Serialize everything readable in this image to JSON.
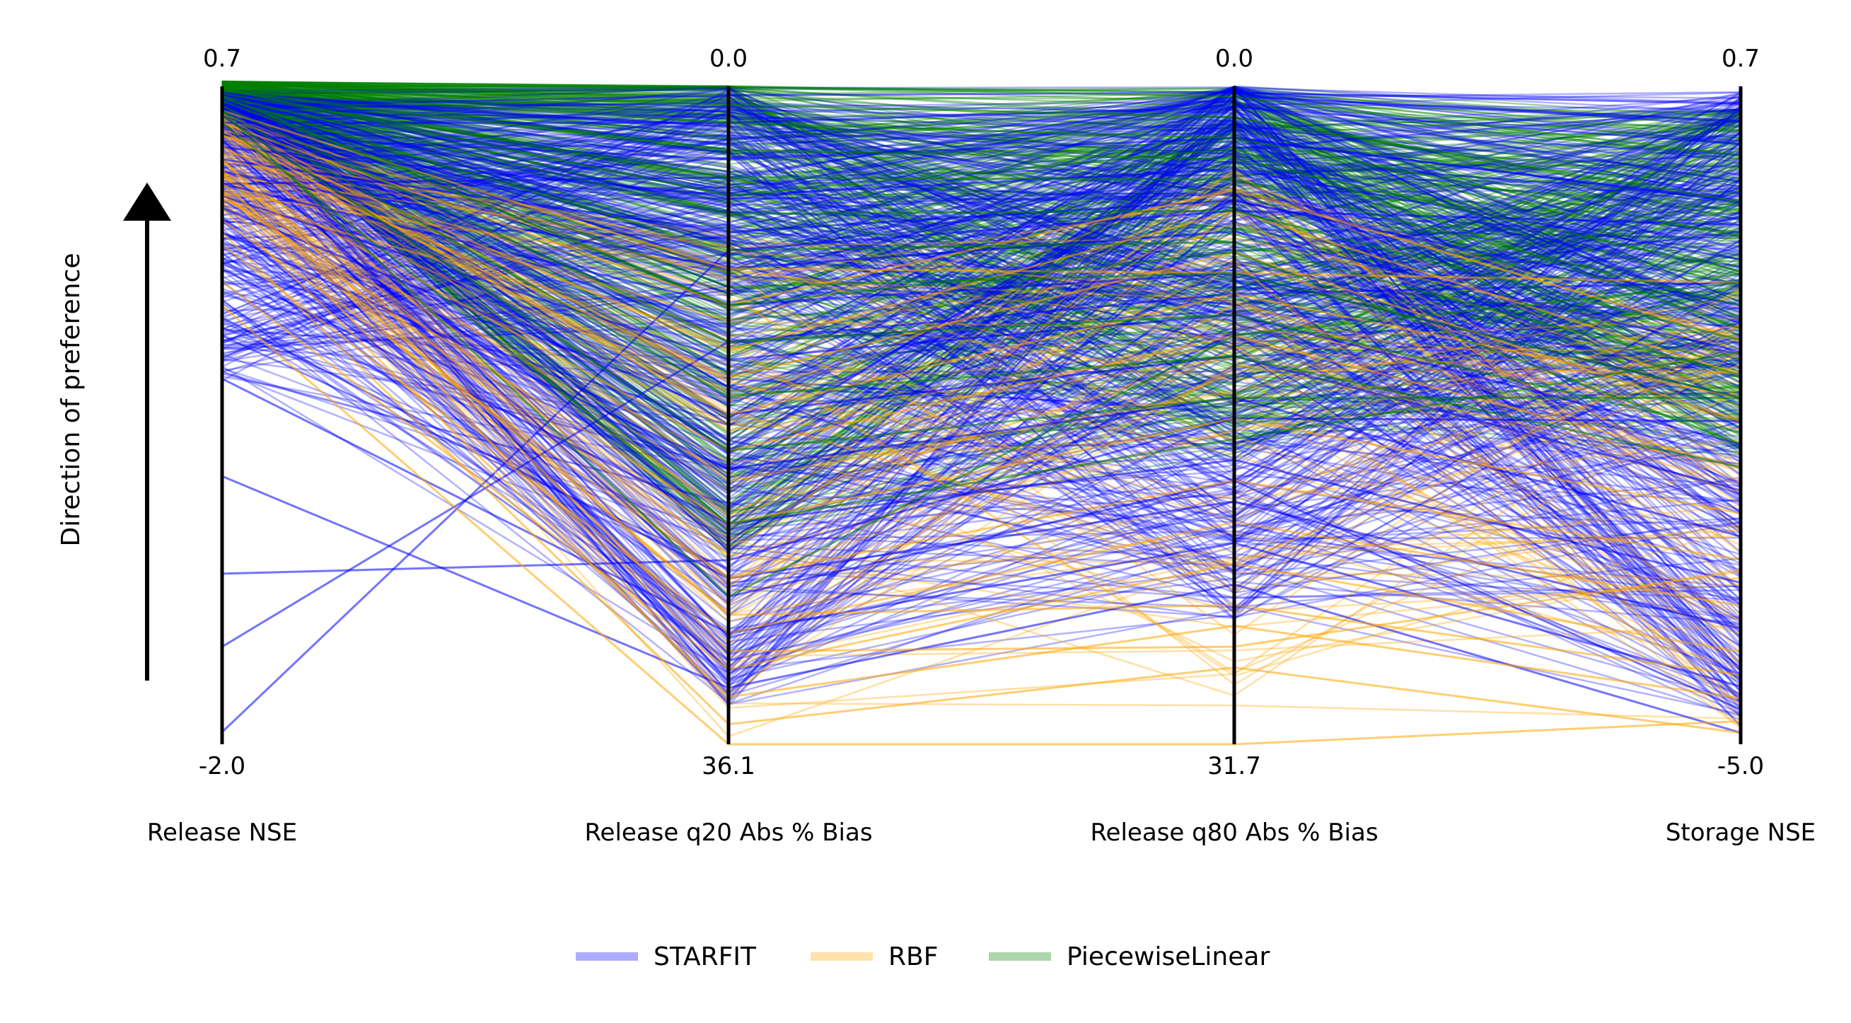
{
  "chart_data": {
    "type": "parallel-coordinates",
    "title": "",
    "preference_label": "Direction of preference",
    "axes": [
      {
        "name": "Release NSE",
        "top_label": "0.7",
        "bottom_label": "-2.0",
        "range": [
          -2.0,
          0.7
        ],
        "higher_is_better": true
      },
      {
        "name": "Release q20 Abs % Bias",
        "top_label": "0.0",
        "bottom_label": "36.1",
        "range": [
          36.1,
          0.0
        ],
        "higher_is_better": false
      },
      {
        "name": "Release q80 Abs % Bias",
        "top_label": "0.0",
        "bottom_label": "31.7",
        "range": [
          31.7,
          0.0
        ],
        "higher_is_better": false
      },
      {
        "name": "Storage NSE",
        "top_label": "0.7",
        "bottom_label": "-5.0",
        "range": [
          -5.0,
          0.7
        ],
        "higher_is_better": true
      }
    ],
    "series": [
      {
        "name": "STARFIT",
        "color": "#0000ff",
        "samples": [
          [
            0.62,
            0.5,
            0.3,
            0.55
          ],
          [
            0.55,
            2.0,
            1.0,
            0.2
          ],
          [
            0.5,
            4.0,
            2.5,
            -0.3
          ],
          [
            0.45,
            6.0,
            4.0,
            -0.8
          ],
          [
            0.4,
            8.0,
            5.5,
            -1.2
          ],
          [
            0.35,
            10.0,
            7.0,
            -1.6
          ],
          [
            0.3,
            12.0,
            9.0,
            -2.0
          ],
          [
            0.25,
            15.0,
            11.0,
            -2.4
          ],
          [
            0.2,
            18.0,
            13.0,
            -2.8
          ],
          [
            0.1,
            21.0,
            15.0,
            -3.2
          ],
          [
            -0.05,
            24.0,
            18.0,
            -3.6
          ],
          [
            -0.25,
            27.0,
            20.0,
            -4.0
          ],
          [
            -0.5,
            30.0,
            22.0,
            -4.5
          ],
          [
            -0.9,
            33.0,
            24.0,
            -4.9
          ],
          [
            -1.3,
            26.0,
            16.0,
            -2.2
          ],
          [
            -1.6,
            14.0,
            10.0,
            -1.0
          ],
          [
            -1.95,
            9.0,
            6.0,
            -0.5
          ],
          [
            0.58,
            20.0,
            3.0,
            0.5
          ],
          [
            0.48,
            28.0,
            19.0,
            -4.7
          ],
          [
            0.3,
            5.0,
            0.5,
            0.4
          ]
        ]
      },
      {
        "name": "RBF",
        "color": "#ffa500",
        "samples": [
          [
            0.55,
            12.0,
            5.0,
            -1.5
          ],
          [
            0.5,
            14.5,
            6.0,
            -1.8
          ],
          [
            0.45,
            16.0,
            8.0,
            -2.2
          ],
          [
            0.35,
            20.0,
            12.0,
            -2.6
          ],
          [
            0.25,
            24.0,
            16.0,
            -3.0
          ],
          [
            0.15,
            27.0,
            19.0,
            -3.4
          ],
          [
            0.05,
            30.0,
            21.0,
            -3.8
          ],
          [
            -0.1,
            32.0,
            23.0,
            -4.2
          ],
          [
            0.2,
            33.5,
            26.0,
            -4.6
          ],
          [
            0.1,
            35.0,
            28.0,
            -4.9
          ],
          [
            -0.2,
            36.1,
            31.7,
            -4.8
          ],
          [
            0.4,
            31.0,
            27.0,
            -3.5
          ],
          [
            0.3,
            29.0,
            25.0,
            -4.4
          ],
          [
            0.6,
            10.0,
            9.0,
            -1.0
          ],
          [
            0.52,
            18.0,
            10.0,
            -2.0
          ]
        ]
      },
      {
        "name": "PiecewiseLinear",
        "color": "#008000",
        "samples": [
          [
            0.7,
            0.0,
            0.5,
            0.1
          ],
          [
            0.69,
            1.0,
            1.5,
            -0.3
          ],
          [
            0.68,
            2.0,
            2.5,
            -0.6
          ],
          [
            0.68,
            3.5,
            3.5,
            -0.9
          ],
          [
            0.67,
            5.0,
            4.5,
            -1.2
          ],
          [
            0.66,
            7.0,
            6.0,
            -1.5
          ],
          [
            0.65,
            9.0,
            7.5,
            -1.8
          ],
          [
            0.64,
            11.0,
            9.0,
            -2.0
          ],
          [
            0.62,
            14.0,
            11.0,
            -2.3
          ],
          [
            0.6,
            17.0,
            13.0,
            -2.6
          ],
          [
            0.58,
            20.0,
            15.0,
            -2.0
          ],
          [
            0.55,
            24.0,
            17.0,
            -1.6
          ],
          [
            0.6,
            28.0,
            12.0,
            -1.0
          ],
          [
            0.66,
            12.0,
            8.0,
            -2.4
          ],
          [
            0.69,
            6.0,
            3.0,
            -1.4
          ]
        ]
      }
    ],
    "legend": {
      "placement": "bottom-center",
      "entries": [
        "STARFIT",
        "RBF",
        "PiecewiseLinear"
      ]
    }
  }
}
